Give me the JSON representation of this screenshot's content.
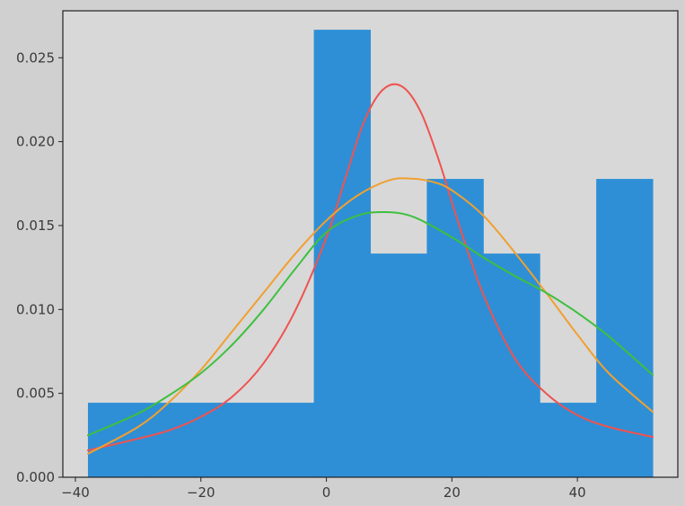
{
  "chart_data": {
    "type": "bar",
    "title": "",
    "xlabel": "",
    "ylabel": "",
    "xlim": [
      -42,
      56
    ],
    "ylim": [
      0,
      0.0278
    ],
    "grid": false,
    "histogram": {
      "bin_edges": [
        -38,
        -29,
        -20,
        -11,
        -2,
        7,
        16,
        25,
        34,
        43,
        52
      ],
      "density": [
        0.00444,
        0.00444,
        0.00444,
        0.00444,
        0.02667,
        0.01333,
        0.01778,
        0.01333,
        0.00444,
        0.01778
      ],
      "color": "#2e8fd6"
    },
    "series": [
      {
        "type": "line",
        "color": "#ef5350",
        "x": [
          -38,
          -30,
          -25,
          -20,
          -15,
          -10,
          -5,
          0,
          3,
          6,
          9,
          12,
          15,
          18,
          21,
          25,
          30,
          35,
          40,
          45,
          52
        ],
        "values": [
          0.0016,
          0.0023,
          0.0028,
          0.0036,
          0.0048,
          0.0068,
          0.0099,
          0.0143,
          0.0178,
          0.0212,
          0.0231,
          0.0233,
          0.0218,
          0.0188,
          0.0152,
          0.0109,
          0.0071,
          0.005,
          0.0037,
          0.003,
          0.0024
        ]
      },
      {
        "type": "line",
        "color": "#f0a030",
        "x": [
          -38,
          -30,
          -25,
          -20,
          -15,
          -10,
          -5,
          0,
          5,
          10,
          13.5,
          17,
          20,
          25,
          30,
          35,
          40,
          45,
          52
        ],
        "values": [
          0.0014,
          0.003,
          0.0045,
          0.0064,
          0.0087,
          0.011,
          0.0133,
          0.0153,
          0.0168,
          0.0177,
          0.0178,
          0.0176,
          0.0171,
          0.0156,
          0.0134,
          0.011,
          0.0085,
          0.0062,
          0.0039
        ]
      },
      {
        "type": "line",
        "color": "#3ec03e",
        "x": [
          -38,
          -30,
          -25,
          -20,
          -15,
          -10,
          -5,
          0,
          5,
          9.5,
          14,
          20,
          25,
          30,
          35,
          40,
          45,
          52
        ],
        "values": [
          0.0025,
          0.0038,
          0.0049,
          0.0062,
          0.0079,
          0.01,
          0.0124,
          0.0146,
          0.0156,
          0.0158,
          0.0155,
          0.0143,
          0.0131,
          0.012,
          0.011,
          0.0098,
          0.0084,
          0.0061
        ]
      }
    ],
    "xticks": [
      -40,
      -20,
      0,
      20,
      40
    ],
    "yticks": [
      0,
      0.005,
      0.01,
      0.015,
      0.02,
      0.025
    ],
    "xtick_labels": [
      "−40",
      "−20",
      "0",
      "20",
      "40"
    ],
    "ytick_labels": [
      "0.000",
      "0.005",
      "0.010",
      "0.015",
      "0.020",
      "0.025"
    ]
  }
}
